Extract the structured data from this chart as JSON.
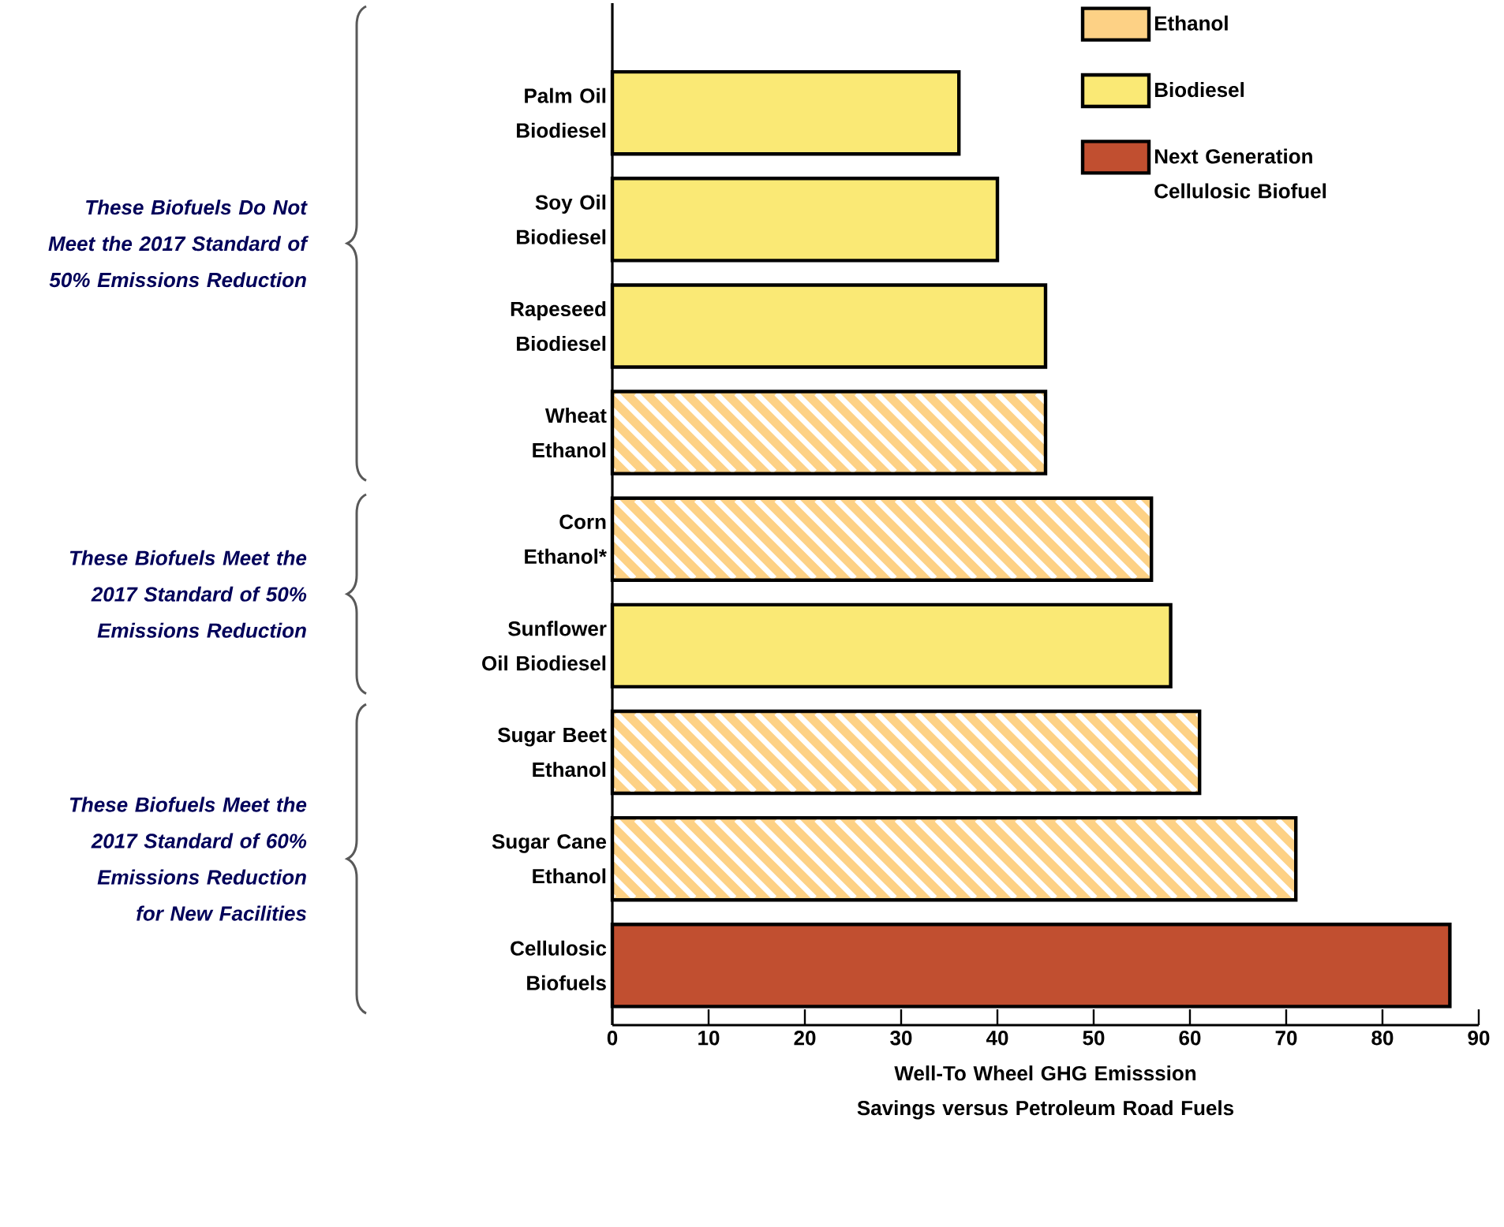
{
  "chart_data": {
    "type": "bar",
    "orientation": "horizontal",
    "xlabel": "Well-To Wheel GHG Emisssion Savings versus Petroleum Road Fuels",
    "categories": [
      "Palm Oil Biodiesel",
      "Soy Oil Biodiesel",
      "Rapeseed Biodiesel",
      "Wheat Ethanol",
      "Corn Ethanol*",
      "Sunflower Oil Biodiesel",
      "Sugar Beet Ethanol",
      "Sugar Cane Ethanol",
      "Cellulosic Biofuels"
    ],
    "series": [
      {
        "name": "Ethanol",
        "color": "#fdd185",
        "values": [
          null,
          null,
          null,
          45,
          56,
          null,
          61,
          71,
          null
        ]
      },
      {
        "name": "Biodiesel",
        "color": "#fae975",
        "values": [
          36,
          40,
          45,
          null,
          null,
          58,
          null,
          null,
          null
        ]
      },
      {
        "name": "Next Generation Cellulosic Biofuel",
        "color": "#c14f30",
        "values": [
          null,
          null,
          null,
          null,
          null,
          null,
          null,
          null,
          87
        ]
      }
    ],
    "xlim": [
      0,
      90
    ],
    "xticks": [
      0,
      10,
      20,
      30,
      40,
      50,
      60,
      70,
      80,
      90
    ],
    "legend": "top right",
    "grid": false,
    "annotations": [
      "These Biofuels Do Not Meet the 2017 Standard of 50% Emissions Reduction",
      "These Biofuels Meet the 2017 Standard of 50% Emissions Reduction",
      "These Biofuels Meet the 2017 Standard of 60% Emissions Reduction for New Facilities"
    ]
  }
}
